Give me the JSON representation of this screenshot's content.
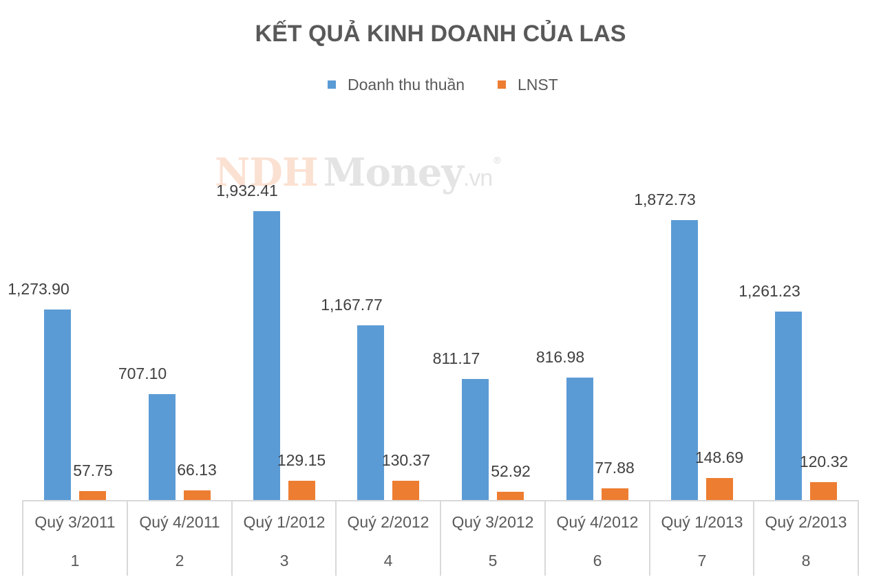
{
  "title": "KẾT QUẢ KINH DOANH CỦA LAS",
  "watermark": {
    "part1": "NDH",
    "part2": "Money",
    "part3": ".vn",
    "reg": "®"
  },
  "colors": {
    "revenue": "#5b9bd5",
    "profit": "#ed7d31",
    "text": "#595959",
    "grid": "#d9d9d9"
  },
  "legend": [
    {
      "label": "Doanh thu thuần",
      "color": "#5b9bd5"
    },
    {
      "label": "LNST",
      "color": "#ed7d31"
    }
  ],
  "chart_data": {
    "type": "bar",
    "title": "KẾT QUẢ KINH DOANH CỦA LAS",
    "xlabel": "",
    "ylabel": "",
    "categories": [
      "Quý 3/2011",
      "Quý 4/2011",
      "Quý 1/2012",
      "Quý 2/2012",
      "Quý 3/2012",
      "Quý 4/2012",
      "Quý 1/2013",
      "Quý 2/2013"
    ],
    "category_index": [
      "1",
      "2",
      "3",
      "4",
      "5",
      "6",
      "7",
      "8"
    ],
    "series": [
      {
        "name": "Doanh thu thuần",
        "color": "#5b9bd5",
        "values": [
          1273.9,
          707.1,
          1932.41,
          1167.77,
          811.17,
          816.98,
          1872.73,
          1261.23
        ],
        "labels": [
          "1,273.90",
          "707.10",
          "1,932.41",
          "1,167.77",
          "811.17",
          "816.98",
          "1,872.73",
          "1,261.23"
        ]
      },
      {
        "name": "LNST",
        "color": "#ed7d31",
        "values": [
          57.75,
          66.13,
          129.15,
          130.37,
          52.92,
          77.88,
          148.69,
          120.32
        ],
        "labels": [
          "57.75",
          "66.13",
          "129.15",
          "130.37",
          "52.92",
          "77.88",
          "148.69",
          "120.32"
        ]
      }
    ],
    "ylim": [
      0,
      1932.41
    ],
    "grid": false,
    "legend_position": "top",
    "data_labels": true
  }
}
